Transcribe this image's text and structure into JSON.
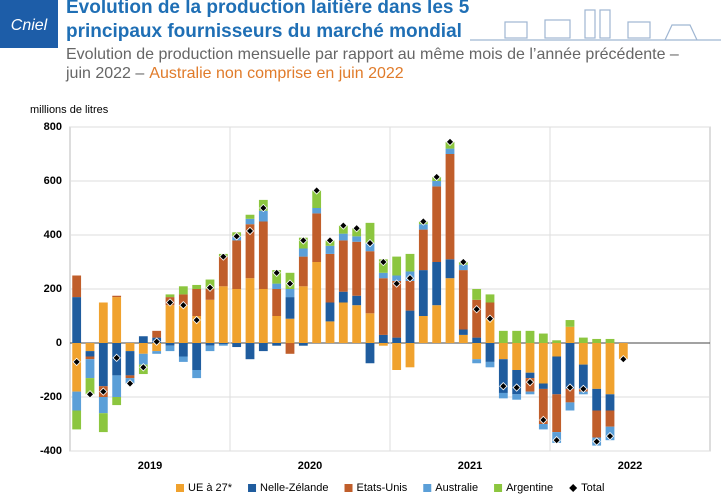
{
  "header": {
    "logo": "Cniel",
    "title_lines": [
      "Evolution de la production laitière dans les 5",
      "principaux fournisseurs du marché mondial"
    ],
    "subtitle_lines": [
      "Evolution de production mensuelle par rapport au même mois de l’année précédente –",
      "juin 2022 –"
    ],
    "subtitle_note": "Australie non comprise en juin 2022"
  },
  "chart_data": {
    "type": "bar",
    "stacked": true,
    "y_label": "millions de litres",
    "categories": [
      null,
      null,
      null,
      null,
      null,
      null,
      null,
      null,
      null,
      null,
      null,
      null,
      null,
      null,
      null,
      null,
      null,
      null,
      null,
      null,
      null,
      null,
      null,
      null,
      null,
      null,
      null,
      null,
      null,
      null,
      null,
      null,
      null,
      null,
      null,
      null,
      null,
      null,
      null,
      null,
      null,
      null,
      null,
      null,
      null,
      null,
      null,
      null
    ],
    "year_labels": [
      "2019",
      "2020",
      "2021",
      "2022"
    ],
    "ylim": [
      -400,
      800
    ],
    "yticks": [
      -400,
      -200,
      0,
      200,
      400,
      600,
      800
    ],
    "grid": true,
    "series": [
      {
        "name": "UE à 27*",
        "color": "#f0a22e",
        "values": [
          -180,
          -30,
          150,
          170,
          -30,
          -40,
          -30,
          140,
          140,
          100,
          160,
          210,
          200,
          240,
          200,
          100,
          90,
          210,
          300,
          80,
          150,
          140,
          110,
          -10,
          -100,
          -90,
          100,
          140,
          240,
          30,
          -60,
          90,
          -60,
          -100,
          -110,
          -150,
          -50,
          60,
          -80,
          -170,
          -190,
          -60,
          null,
          null,
          null,
          null,
          null,
          null
        ]
      },
      {
        "name": "Nelle-Zélande",
        "color": "#1f5c9e",
        "values": [
          170,
          -20,
          -160,
          -120,
          -90,
          25,
          20,
          -10,
          -50,
          -100,
          -10,
          -5,
          -15,
          -60,
          -30,
          -10,
          80,
          -10,
          0,
          70,
          40,
          35,
          -75,
          30,
          20,
          120,
          170,
          160,
          70,
          20,
          20,
          -70,
          -125,
          -90,
          -20,
          -20,
          -140,
          -170,
          -90,
          -80,
          -60,
          0,
          null,
          null,
          null,
          null,
          null,
          null
        ]
      },
      {
        "name": "Etats-Unis",
        "color": "#c05e2b",
        "values": [
          80,
          -10,
          -40,
          5,
          -10,
          0,
          25,
          30,
          40,
          100,
          40,
          110,
          180,
          200,
          250,
          100,
          -40,
          110,
          180,
          180,
          190,
          200,
          230,
          210,
          210,
          110,
          150,
          280,
          390,
          220,
          140,
          60,
          0,
          0,
          -50,
          -130,
          -140,
          -50,
          -10,
          -100,
          -60,
          0,
          null,
          null,
          null,
          null,
          null,
          null
        ]
      },
      {
        "name": "Australie",
        "color": "#5b9fd8",
        "values": [
          -70,
          -70,
          -60,
          -80,
          -20,
          -40,
          -10,
          -20,
          -20,
          -30,
          -20,
          -5,
          15,
          20,
          40,
          20,
          30,
          30,
          20,
          30,
          25,
          20,
          30,
          20,
          20,
          35,
          20,
          20,
          20,
          20,
          -15,
          -20,
          -20,
          -20,
          -10,
          -20,
          -40,
          -30,
          -10,
          -30,
          -50,
          null,
          null,
          null,
          null,
          null,
          null,
          null
        ]
      },
      {
        "name": "Argentine",
        "color": "#8cc63f",
        "values": [
          -70,
          -60,
          -70,
          -30,
          0,
          -35,
          0,
          10,
          30,
          15,
          35,
          10,
          15,
          15,
          40,
          50,
          60,
          40,
          65,
          20,
          30,
          30,
          75,
          50,
          70,
          65,
          10,
          15,
          25,
          10,
          40,
          30,
          45,
          45,
          45,
          35,
          10,
          25,
          20,
          15,
          15,
          0,
          null,
          null,
          null,
          null,
          null,
          null
        ]
      },
      {
        "name": "Total",
        "color": "#000000",
        "style": "marker",
        "values": [
          -70,
          -190,
          -180,
          -55,
          -150,
          -90,
          5,
          150,
          140,
          85,
          205,
          320,
          395,
          415,
          500,
          260,
          220,
          380,
          565,
          380,
          435,
          425,
          370,
          300,
          220,
          240,
          450,
          615,
          745,
          300,
          125,
          90,
          -160,
          -165,
          -145,
          -285,
          -360,
          -165,
          -170,
          -365,
          -345,
          -60,
          null,
          null,
          null,
          null,
          null,
          null
        ]
      }
    ]
  }
}
